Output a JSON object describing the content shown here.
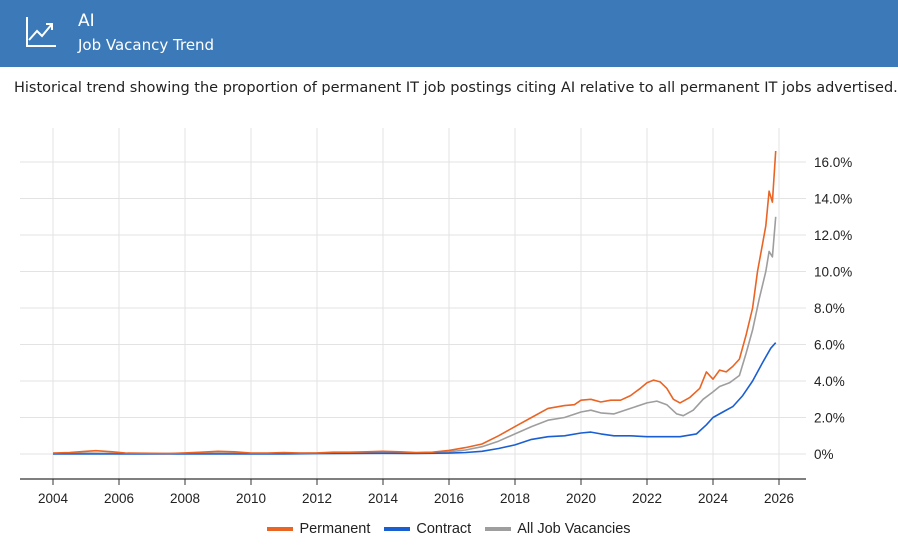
{
  "header": {
    "title": "AI",
    "subtitle": "Job Vacancy Trend",
    "icon": "trend-up-icon",
    "background": "#3b79b8"
  },
  "description": "Historical trend showing the proportion of permanent IT job postings citing AI relative to all permanent IT jobs advertised.",
  "legend": [
    {
      "label": "Permanent",
      "color": "#ea6424"
    },
    {
      "label": "Contract",
      "color": "#1a5fd1"
    },
    {
      "label": "All Job Vacancies",
      "color": "#9e9e9e"
    }
  ],
  "chart_data": {
    "type": "line",
    "title": "",
    "xlabel": "",
    "ylabel": "",
    "xlim": [
      2004,
      2026
    ],
    "ylim": [
      -1,
      17
    ],
    "x_ticks": [
      "2004",
      "2006",
      "2008",
      "2010",
      "2012",
      "2014",
      "2016",
      "2018",
      "2020",
      "2022",
      "2024",
      "2026"
    ],
    "y_ticks": [
      "0%",
      "2.0%",
      "4.0%",
      "6.0%",
      "8.0%",
      "10.0%",
      "12.0%",
      "14.0%",
      "16.0%"
    ],
    "grid": true,
    "legend_position": "bottom",
    "series": [
      {
        "name": "Permanent",
        "color": "#ea6424",
        "points": [
          [
            2004,
            0.05
          ],
          [
            2004.5,
            0.08
          ],
          [
            2005,
            0.15
          ],
          [
            2005.3,
            0.18
          ],
          [
            2005.8,
            0.12
          ],
          [
            2006.2,
            0.05
          ],
          [
            2007,
            0.04
          ],
          [
            2007.5,
            0.03
          ],
          [
            2008,
            0.06
          ],
          [
            2008.5,
            0.1
          ],
          [
            2009,
            0.15
          ],
          [
            2009.5,
            0.12
          ],
          [
            2010,
            0.05
          ],
          [
            2010.5,
            0.05
          ],
          [
            2011,
            0.08
          ],
          [
            2011.5,
            0.05
          ],
          [
            2012,
            0.06
          ],
          [
            2012.5,
            0.1
          ],
          [
            2013,
            0.1
          ],
          [
            2013.5,
            0.12
          ],
          [
            2014,
            0.15
          ],
          [
            2014.5,
            0.12
          ],
          [
            2015,
            0.08
          ],
          [
            2015.5,
            0.1
          ],
          [
            2016,
            0.2
          ],
          [
            2016.5,
            0.35
          ],
          [
            2017,
            0.55
          ],
          [
            2017.5,
            1.0
          ],
          [
            2018,
            1.5
          ],
          [
            2018.5,
            2.0
          ],
          [
            2019,
            2.5
          ],
          [
            2019.5,
            2.65
          ],
          [
            2019.8,
            2.7
          ],
          [
            2020,
            2.95
          ],
          [
            2020.3,
            3.0
          ],
          [
            2020.6,
            2.85
          ],
          [
            2020.9,
            2.95
          ],
          [
            2021.2,
            2.95
          ],
          [
            2021.5,
            3.2
          ],
          [
            2021.8,
            3.6
          ],
          [
            2022,
            3.9
          ],
          [
            2022.2,
            4.05
          ],
          [
            2022.4,
            3.95
          ],
          [
            2022.6,
            3.6
          ],
          [
            2022.8,
            3.0
          ],
          [
            2023,
            2.8
          ],
          [
            2023.3,
            3.1
          ],
          [
            2023.6,
            3.6
          ],
          [
            2023.8,
            4.5
          ],
          [
            2024,
            4.1
          ],
          [
            2024.2,
            4.6
          ],
          [
            2024.4,
            4.5
          ],
          [
            2024.6,
            4.8
          ],
          [
            2024.8,
            5.2
          ],
          [
            2025,
            6.5
          ],
          [
            2025.2,
            8.0
          ],
          [
            2025.35,
            10.0
          ],
          [
            2025.5,
            11.5
          ],
          [
            2025.6,
            12.5
          ],
          [
            2025.7,
            14.4
          ],
          [
            2025.8,
            13.8
          ],
          [
            2025.9,
            16.6
          ]
        ]
      },
      {
        "name": "Contract",
        "color": "#1a5fd1",
        "points": [
          [
            2004,
            0.0
          ],
          [
            2005,
            0.0
          ],
          [
            2006,
            0.0
          ],
          [
            2007,
            0.0
          ],
          [
            2008,
            0.0
          ],
          [
            2009,
            0.0
          ],
          [
            2010,
            0.0
          ],
          [
            2011,
            0.0
          ],
          [
            2012,
            0.02
          ],
          [
            2013,
            0.03
          ],
          [
            2014,
            0.04
          ],
          [
            2015,
            0.03
          ],
          [
            2016,
            0.05
          ],
          [
            2016.5,
            0.08
          ],
          [
            2017,
            0.15
          ],
          [
            2017.5,
            0.3
          ],
          [
            2018,
            0.5
          ],
          [
            2018.5,
            0.8
          ],
          [
            2019,
            0.95
          ],
          [
            2019.5,
            1.0
          ],
          [
            2020,
            1.15
          ],
          [
            2020.3,
            1.2
          ],
          [
            2020.6,
            1.1
          ],
          [
            2021,
            1.0
          ],
          [
            2021.5,
            1.0
          ],
          [
            2022,
            0.95
          ],
          [
            2022.5,
            0.95
          ],
          [
            2023,
            0.95
          ],
          [
            2023.5,
            1.1
          ],
          [
            2023.8,
            1.6
          ],
          [
            2024,
            2.0
          ],
          [
            2024.3,
            2.3
          ],
          [
            2024.6,
            2.6
          ],
          [
            2024.9,
            3.2
          ],
          [
            2025.2,
            4.0
          ],
          [
            2025.5,
            5.0
          ],
          [
            2025.75,
            5.8
          ],
          [
            2025.9,
            6.1
          ]
        ]
      },
      {
        "name": "All Job Vacancies",
        "color": "#9e9e9e",
        "points": [
          [
            2004,
            0.02
          ],
          [
            2005,
            0.05
          ],
          [
            2006,
            0.03
          ],
          [
            2007,
            0.03
          ],
          [
            2008,
            0.04
          ],
          [
            2009,
            0.05
          ],
          [
            2010,
            0.03
          ],
          [
            2011,
            0.04
          ],
          [
            2012,
            0.05
          ],
          [
            2013,
            0.06
          ],
          [
            2014,
            0.08
          ],
          [
            2015,
            0.06
          ],
          [
            2016,
            0.12
          ],
          [
            2016.5,
            0.22
          ],
          [
            2017,
            0.4
          ],
          [
            2017.5,
            0.7
          ],
          [
            2018,
            1.1
          ],
          [
            2018.5,
            1.5
          ],
          [
            2019,
            1.85
          ],
          [
            2019.5,
            2.0
          ],
          [
            2020,
            2.3
          ],
          [
            2020.3,
            2.4
          ],
          [
            2020.6,
            2.25
          ],
          [
            2021,
            2.2
          ],
          [
            2021.5,
            2.5
          ],
          [
            2022,
            2.8
          ],
          [
            2022.3,
            2.9
          ],
          [
            2022.6,
            2.7
          ],
          [
            2022.9,
            2.2
          ],
          [
            2023.1,
            2.1
          ],
          [
            2023.4,
            2.4
          ],
          [
            2023.7,
            3.0
          ],
          [
            2024,
            3.4
          ],
          [
            2024.2,
            3.7
          ],
          [
            2024.5,
            3.9
          ],
          [
            2024.8,
            4.3
          ],
          [
            2025,
            5.5
          ],
          [
            2025.2,
            6.8
          ],
          [
            2025.4,
            8.5
          ],
          [
            2025.6,
            10.0
          ],
          [
            2025.7,
            11.1
          ],
          [
            2025.8,
            10.8
          ],
          [
            2025.9,
            13.0
          ]
        ]
      }
    ]
  }
}
